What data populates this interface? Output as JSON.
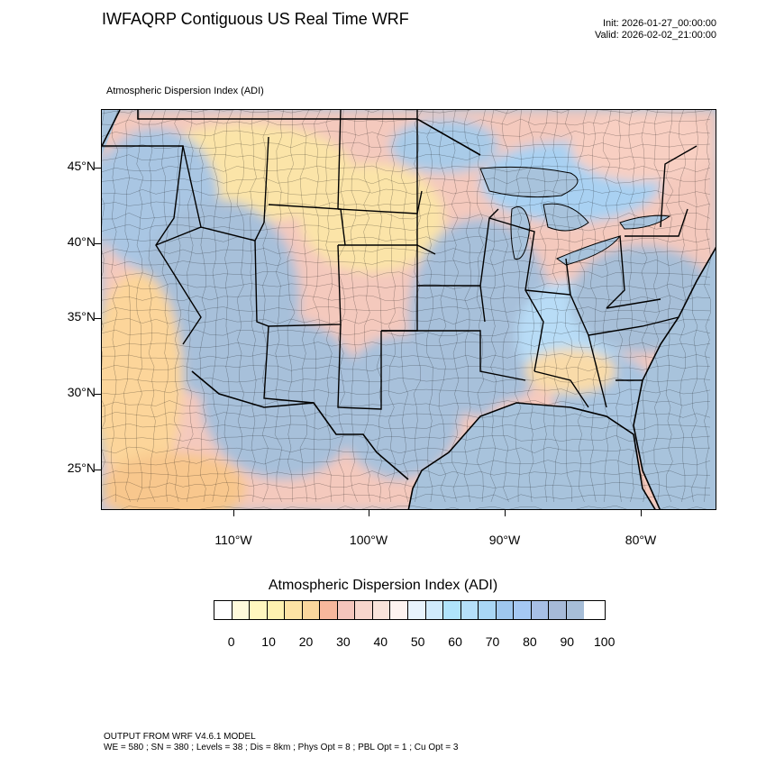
{
  "header": {
    "title": "IWFAQRP Contiguous US Real Time WRF",
    "init": "Init: 2026-01-27_00:00:00",
    "valid": "Valid: 2026-02-02_21:00:00"
  },
  "map": {
    "subtitle": "Atmospheric Dispersion Index   (ADI)",
    "lat_labels": [
      "45°N",
      "40°N",
      "35°N",
      "30°N",
      "25°N"
    ],
    "lon_labels": [
      "110°W",
      "100°W",
      "90°W",
      "80°W"
    ],
    "colors": {
      "ocean": "#a8c3dc",
      "land_high": "#a7bfd9",
      "land_mid": "#f8d8cf",
      "land_low": "#fbe3a6",
      "border": "#000000"
    }
  },
  "colorbar": {
    "title": "Atmospheric Dispersion Index  (ADI)",
    "labels": [
      "0",
      "10",
      "20",
      "30",
      "40",
      "50",
      "60",
      "70",
      "80",
      "90",
      "100"
    ],
    "colors": [
      "#ffffff",
      "#fffadb",
      "#fff7bf",
      "#fef1b0",
      "#fde3a4",
      "#fbd79d",
      "#f7b79c",
      "#f4c5bc",
      "#f7d5cc",
      "#f9e3da",
      "#fdf3f0",
      "#e8f3fc",
      "#d0eafb",
      "#b0e4fb",
      "#b5e0fa",
      "#a9d6f5",
      "#9fc7ee",
      "#a5c8f3",
      "#a7bfe6",
      "#a6bad8",
      "#a7bed8"
    ]
  },
  "footer": {
    "line1": "OUTPUT FROM WRF V4.6.1 MODEL",
    "line2": "WE = 580 ; SN = 380 ; Levels = 38 ; Dis = 8km ; Phys Opt = 8 ; PBL Opt = 1 ; Cu Opt = 3"
  }
}
